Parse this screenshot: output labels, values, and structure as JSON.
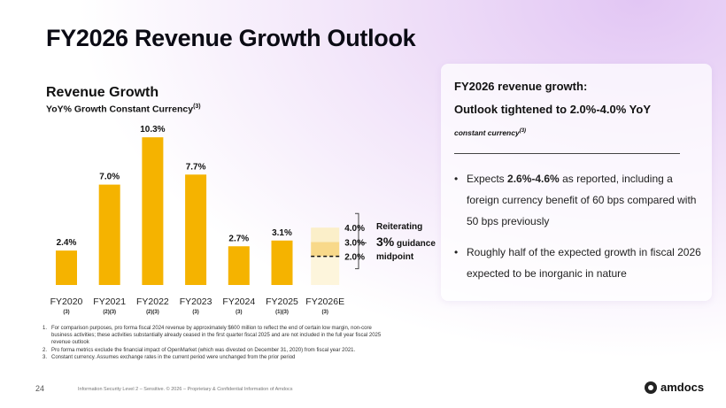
{
  "page_title": "FY2026 Revenue Growth Outlook",
  "chart_data": {
    "type": "bar",
    "title": "Revenue Growth",
    "subtitle": "YoY% Growth Constant Currency",
    "subtitle_sup": "(3)",
    "categories": [
      "FY2020",
      "FY2021",
      "FY2022",
      "FY2023",
      "FY2024",
      "FY2025",
      "FY2026E"
    ],
    "category_notes": [
      "(3)",
      "(2)(3)",
      "(2)(3)",
      "(3)",
      "(3)",
      "(1)(3)",
      "(3)"
    ],
    "values": [
      2.4,
      7.0,
      10.3,
      7.7,
      2.7,
      3.1,
      null
    ],
    "value_labels": [
      "2.4%",
      "7.0%",
      "10.3%",
      "7.7%",
      "2.7%",
      "3.1%",
      ""
    ],
    "guidance": {
      "low": 2.0,
      "mid": 3.0,
      "high": 4.0,
      "low_label": "2.0%",
      "mid_label": "3.0%",
      "high_label": "4.0%"
    },
    "annotation": {
      "line1": "Reiterating",
      "line2_big": "3%",
      "line2_rest": " guidance",
      "line3": "midpoint"
    },
    "ylim": [
      0,
      11
    ],
    "colors": {
      "bar": "#f5b300",
      "guidance_upper": "#fbefc9",
      "guidance_lower": "#f8d98a",
      "dash": "#111111"
    }
  },
  "panel": {
    "heading1": "FY2026 revenue growth:",
    "heading2": "Outlook tightened to 2.0%-4.0% YoY",
    "heading3": "constant currency",
    "heading3_sup": "(3)",
    "bullet1_pre": "Expects ",
    "bullet1_bold": "2.6%-4.6%",
    "bullet1_post": " as reported, including a foreign currency benefit of 60 bps compared with 50 bps previously",
    "bullet2": "Roughly half of the expected growth in fiscal 2026 expected to be inorganic in nature"
  },
  "footnotes": [
    {
      "num": "1.",
      "text": "For comparison purposes, pro forma  fiscal 2024 revenue by approximately $600 million to reflect the end of certain low margin, non-core business activities; these activities substantially already ceased in the first quarter fiscal 2025 and are not included in the full year fiscal 2025 revenue outlook"
    },
    {
      "num": "2.",
      "text": "Pro forma metrics exclude the financial impact of OpenMarket (which was divested on December 31, 2020) from fiscal year 2021."
    },
    {
      "num": "3.",
      "text": "Constant currency. Assumes exchange rates in the current period were unchanged from the prior period"
    }
  ],
  "footer": {
    "page_number": "24",
    "classification": "Information Security Level 2 – Sensitive. © 2026 – Proprietary & Confidential Information of Amdocs",
    "logo_text": "amdocs"
  }
}
